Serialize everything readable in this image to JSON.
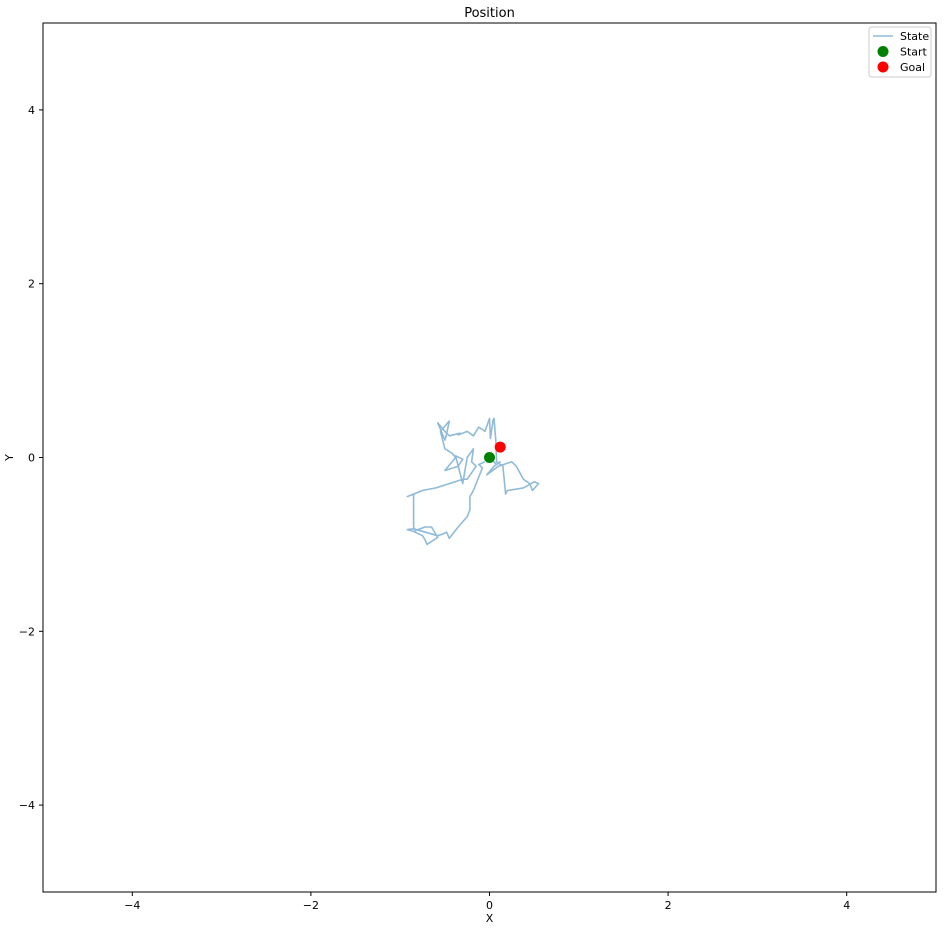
{
  "chart_data": {
    "type": "line",
    "title": "Position",
    "xlabel": "X",
    "ylabel": "Y",
    "xlim": [
      -5,
      5
    ],
    "ylim": [
      -5,
      5
    ],
    "grid": false,
    "legend_position": "top-right",
    "xticks": [
      -4,
      -2,
      0,
      2,
      4
    ],
    "xtick_labels": [
      "−4",
      "−2",
      "0",
      "2",
      "4"
    ],
    "yticks": [
      -4,
      -2,
      0,
      2,
      4
    ],
    "ytick_labels": [
      "−4",
      "−2",
      "0",
      "2",
      "4"
    ],
    "series": [
      {
        "name": "State",
        "kind": "line",
        "color": "#8fbbd9",
        "points": [
          [
            0.0,
            0.0
          ],
          [
            0.08,
            -0.08
          ],
          [
            0.12,
            -0.05
          ],
          [
            0.05,
            -0.1
          ],
          [
            -0.03,
            -0.2
          ],
          [
            0.1,
            -0.1
          ],
          [
            0.25,
            -0.05
          ],
          [
            0.3,
            -0.1
          ],
          [
            0.38,
            -0.25
          ],
          [
            0.45,
            -0.3
          ],
          [
            0.48,
            -0.38
          ],
          [
            0.55,
            -0.3
          ],
          [
            0.5,
            -0.28
          ],
          [
            0.38,
            -0.35
          ],
          [
            0.2,
            -0.38
          ],
          [
            0.18,
            -0.42
          ],
          [
            0.15,
            -0.1
          ],
          [
            0.08,
            -0.05
          ],
          [
            0.07,
            0.2
          ],
          [
            0.05,
            0.45
          ],
          [
            0.04,
            0.43
          ],
          [
            0.01,
            0.22
          ],
          [
            0.0,
            0.45
          ],
          [
            -0.05,
            0.3
          ],
          [
            -0.12,
            0.35
          ],
          [
            -0.18,
            0.25
          ],
          [
            -0.25,
            0.3
          ],
          [
            -0.35,
            0.26
          ],
          [
            -0.33,
            0.28
          ],
          [
            -0.45,
            0.25
          ],
          [
            -0.5,
            0.3
          ],
          [
            -0.58,
            0.4
          ],
          [
            -0.5,
            0.2
          ],
          [
            -0.48,
            0.27
          ],
          [
            -0.45,
            0.42
          ],
          [
            -0.55,
            0.3
          ],
          [
            -0.5,
            0.1
          ],
          [
            -0.42,
            0.05
          ],
          [
            -0.38,
            0.0
          ],
          [
            -0.5,
            -0.15
          ],
          [
            -0.35,
            -0.1
          ],
          [
            -0.3,
            -0.02
          ],
          [
            -0.38,
            0.02
          ],
          [
            -0.3,
            -0.3
          ],
          [
            -0.25,
            0.0
          ],
          [
            -0.18,
            0.1
          ],
          [
            -0.2,
            -0.05
          ],
          [
            -0.15,
            -0.1
          ],
          [
            -0.25,
            -0.25
          ],
          [
            -0.3,
            -0.25
          ],
          [
            -0.45,
            -0.3
          ],
          [
            -0.6,
            -0.35
          ],
          [
            -0.75,
            -0.38
          ],
          [
            -0.92,
            -0.45
          ],
          [
            -0.85,
            -0.42
          ],
          [
            -0.85,
            -0.8
          ],
          [
            -0.83,
            -0.84
          ],
          [
            -0.72,
            -0.8
          ],
          [
            -0.65,
            -0.8
          ],
          [
            -0.58,
            -0.92
          ],
          [
            -0.7,
            -1.0
          ],
          [
            -0.72,
            -0.95
          ],
          [
            -0.75,
            -0.9
          ],
          [
            -0.85,
            -0.85
          ],
          [
            -0.92,
            -0.83
          ],
          [
            -0.85,
            -0.82
          ],
          [
            -0.58,
            -0.9
          ],
          [
            -0.52,
            -0.88
          ],
          [
            -0.48,
            -0.86
          ],
          [
            -0.45,
            -0.93
          ],
          [
            -0.35,
            -0.8
          ],
          [
            -0.25,
            -0.68
          ],
          [
            -0.22,
            -0.6
          ],
          [
            -0.22,
            -0.45
          ],
          [
            -0.18,
            -0.38
          ],
          [
            -0.08,
            -0.12
          ],
          [
            -0.12,
            -0.08
          ],
          [
            -0.05,
            -0.05
          ]
        ]
      },
      {
        "name": "Start",
        "kind": "point",
        "color": "#008000",
        "points": [
          [
            0.0,
            0.0
          ]
        ]
      },
      {
        "name": "Goal",
        "kind": "point",
        "color": "#ff0000",
        "points": [
          [
            0.12,
            0.12
          ]
        ]
      }
    ]
  }
}
